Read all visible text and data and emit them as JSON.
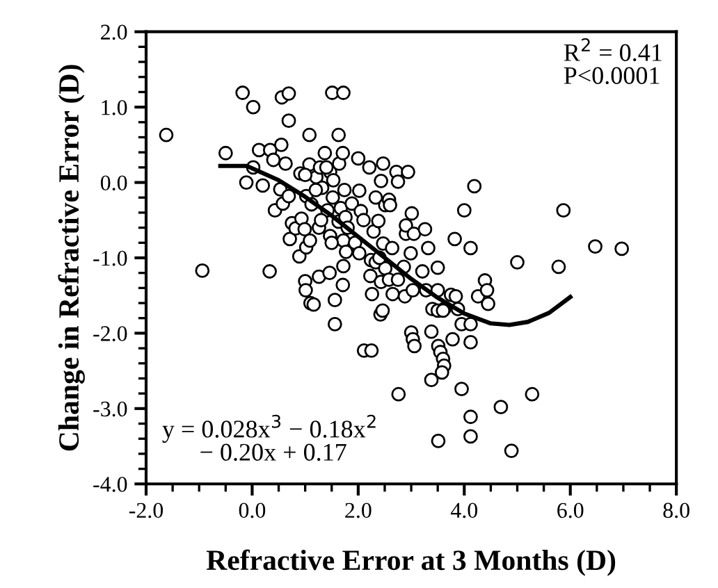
{
  "chart_data": {
    "type": "scatter",
    "xlabel": "Refractive Error at 3 Months (D)",
    "ylabel": "Change in Refractive Error (D)",
    "xlim": [
      -2,
      8
    ],
    "ylim": [
      -4,
      2
    ],
    "xticks": [
      {
        "value": -2,
        "label": "-2.0"
      },
      {
        "value": 0,
        "label": "0.0"
      },
      {
        "value": 2,
        "label": "2.0"
      },
      {
        "value": 4,
        "label": "4.0"
      },
      {
        "value": 6,
        "label": "6.0"
      },
      {
        "value": 8,
        "label": "8.0"
      }
    ],
    "yticks": [
      {
        "value": -4,
        "label": "-4.0"
      },
      {
        "value": -3,
        "label": "-3.0"
      },
      {
        "value": -2,
        "label": "-2.0"
      },
      {
        "value": -1,
        "label": "-1.0"
      },
      {
        "value": 0,
        "label": "0.0"
      },
      {
        "value": 1,
        "label": "1.0"
      },
      {
        "value": 2,
        "label": "2.0"
      }
    ],
    "grid": false,
    "legend": false,
    "annotations": [
      "R$^{2}$ = 0.41\nP<0.0001",
      "y = 0.028x$^{3}$ − 0.18x$^{2}$\n − 0.20x + 0.17"
    ],
    "series": [
      {
        "color": "#000000",
        "marker": "circle",
        "x": [
          -1.62,
          -0.94,
          -0.5,
          -0.18,
          -0.11,
          0.02,
          0.02,
          0.13,
          0.2,
          0.33,
          0.34,
          0.43,
          0.53,
          0.55,
          0.56,
          0.58,
          0.63,
          0.69,
          0.69,
          0.69,
          0.71,
          0.75,
          0.82,
          0.89,
          0.91,
          0.93,
          0.99,
          1.02,
          1.02,
          1.0,
          1.01,
          1.08,
          1.08,
          1.1,
          1.16,
          1.12,
          1.09,
          1.21,
          1.26,
          1.26,
          1.28,
          1.37,
          1.32,
          1.42,
          1.46,
          1.47,
          1.47,
          1.51,
          1.52,
          1.53,
          1.56,
          1.56,
          1.63,
          1.64,
          1.63,
          1.67,
          1.71,
          1.72,
          1.72,
          1.72,
          1.74,
          1.71,
          1.77,
          1.76,
          1.88,
          1.94,
          2.0,
          2.02,
          2.05,
          2.02,
          2.11,
          2.25,
          2.21,
          2.24,
          2.23,
          2.29,
          2.26,
          2.33,
          2.33,
          2.38,
          2.42,
          2.46,
          2.43,
          2.47,
          2.43,
          2.47,
          2.51,
          2.51,
          2.58,
          2.58,
          2.64,
          2.65,
          2.72,
          2.75,
          2.75,
          2.76,
          2.86,
          2.9,
          2.9,
          2.88,
          2.94,
          3.01,
          2.99,
          3.0,
          3.03,
          3.06,
          3.03,
          3.05,
          3.21,
          3.26,
          3.32,
          3.28,
          3.38,
          3.38,
          3.4,
          3.5,
          3.5,
          3.51,
          3.51,
          3.55,
          3.6,
          3.62,
          3.62,
          3.58,
          3.75,
          3.78,
          3.82,
          3.84,
          3.88,
          3.95,
          3.95,
          4.0,
          4.12,
          4.12,
          4.12,
          4.12,
          4.12,
          4.19,
          4.26,
          4.39,
          4.43,
          4.45,
          4.69,
          4.89,
          5.0,
          5.28,
          5.78,
          5.87,
          6.47,
          6.97,
          1.3,
          1.8,
          2.1,
          1.5,
          2.4,
          1.2,
          2.6,
          3.5,
          3.6,
          0.4,
          1.0,
          1.4
        ],
        "values": [
          0.63,
          -1.17,
          0.39,
          1.19,
          0.0,
          1.0,
          0.2,
          0.43,
          -0.04,
          -1.18,
          0.43,
          -0.37,
          -0.09,
          0.5,
          1.13,
          -0.28,
          0.25,
          1.18,
          0.82,
          -0.18,
          -0.75,
          -0.54,
          -0.61,
          -0.98,
          0.12,
          -0.48,
          -0.62,
          -0.18,
          -0.86,
          -1.31,
          -1.43,
          0.63,
          0.24,
          -1.6,
          -1.62,
          -0.29,
          -0.77,
          0.07,
          -1.25,
          -0.6,
          0.2,
          0.39,
          -0.07,
          -0.37,
          -1.2,
          -0.71,
          0.14,
          1.19,
          -0.2,
          0.03,
          -1.56,
          -1.88,
          0.63,
          0.25,
          -0.52,
          -0.34,
          0.39,
          1.19,
          -0.77,
          -1.11,
          -0.1,
          -1.36,
          -0.92,
          -0.46,
          -0.28,
          -0.8,
          0.32,
          -0.11,
          -0.38,
          -0.94,
          -2.23,
          -2.23,
          0.2,
          -1.03,
          -1.24,
          -0.65,
          -1.48,
          -0.2,
          -1.06,
          -0.51,
          -1.75,
          -1.7,
          0.02,
          0.25,
          -1.32,
          -0.81,
          -0.3,
          -1.14,
          -1.29,
          -0.23,
          -0.87,
          -1.48,
          0.14,
          0.01,
          -1.29,
          -2.81,
          -1.12,
          -0.68,
          -0.57,
          -1.51,
          0.14,
          -0.41,
          -0.94,
          -1.99,
          -2.08,
          -2.17,
          -1.43,
          -0.68,
          -1.18,
          -0.62,
          -0.87,
          -1.43,
          -1.98,
          -2.62,
          -1.68,
          -1.13,
          -1.43,
          -3.43,
          -2.17,
          -2.25,
          -2.34,
          -2.43,
          -1.68,
          -2.52,
          -1.49,
          -2.08,
          -0.75,
          -1.51,
          -1.68,
          -2.74,
          -1.88,
          -0.37,
          -0.87,
          -1.88,
          -2.12,
          -3.11,
          -3.37,
          -0.05,
          -1.51,
          -1.3,
          -1.43,
          -1.61,
          -2.98,
          -3.56,
          -1.06,
          -2.81,
          -1.12,
          -0.37,
          -0.85,
          -0.88,
          -0.5,
          -0.6,
          -0.5,
          -0.8,
          -1.0,
          -0.1,
          -0.3,
          -1.7,
          -1.7,
          0.3,
          0.1,
          0.2
        ]
      },
      {
        "type": "line",
        "color": "#000000",
        "marker": "none",
        "line_style": "solid",
        "x": [
          -0.6,
          -0.1,
          0.5,
          1.0,
          1.5,
          2.0,
          2.5,
          3.0,
          3.5,
          4.0,
          4.5,
          4.85,
          5.2,
          5.6,
          6.0
        ],
        "values": [
          0.22,
          0.22,
          0.03,
          -0.19,
          -0.44,
          -0.72,
          -1.0,
          -1.28,
          -1.53,
          -1.74,
          -1.87,
          -1.89,
          -1.85,
          -1.73,
          -1.52
        ]
      }
    ]
  }
}
